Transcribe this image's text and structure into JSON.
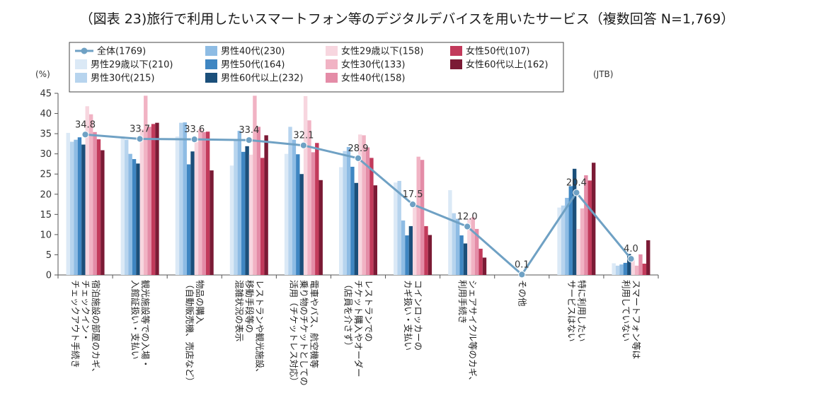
{
  "chart_data": {
    "type": "bar",
    "title": "（図表 23)旅行で利用したいスマートフォン等のデジタルデバイスを用いたサービス（複数回答 N=1,769）",
    "ylabel": "(%)",
    "source": "(JTB)",
    "ylim": [
      0,
      45
    ],
    "yticks": [
      0,
      5,
      10,
      15,
      20,
      25,
      30,
      35,
      40,
      45
    ],
    "categories": [
      "宿泊施設の部屋のカギ、チェックイン・チェックアウト手続き",
      "観光施設等での入場・入館証扱い・支払い",
      "物品の購入（自動販売機、売店など）",
      "レストランや観光施設、移動手段等の混雑状況の表示",
      "電車やバス、航空機等乗り物のチケットとしての活用（チケットレス対応）",
      "レストランでのチケット購入やオーダー（店員を介さず）",
      "コインロッカーのカギ扱い・支払い",
      "シェアサイクル等のカギ、利用手続き",
      "その他",
      "特に利用したいサービスはない",
      "スマートフォン等は利用していない"
    ],
    "category_lines": [
      [
        "宿泊施設の部屋のカギ、",
        "チェックイン・",
        "チェックアウト手続き"
      ],
      [
        "観光施設等での入場・",
        "入館証扱い・支払い"
      ],
      [
        "物品の購入",
        "（自動販売機、売店など）"
      ],
      [
        "レストランや観光施設、",
        "移動手段等の",
        "混雑状況の表示"
      ],
      [
        "電車やバス、航空機等",
        "乗り物のチケットとしての",
        "活用（チケットレス対応）"
      ],
      [
        "レストランでの",
        "チケット購入やオーダー",
        "（店員を介さず）"
      ],
      [
        "コインロッカーの",
        "カギ扱い・支払い"
      ],
      [
        "シェアサイクル等のカギ、",
        "利用手続き"
      ],
      [
        "その他"
      ],
      [
        "特に利用したい",
        "サービスはない"
      ],
      [
        "スマートフォン等は",
        "利用していない"
      ]
    ],
    "line_series": {
      "name": "全体(1769)",
      "color": "#6fa1c4",
      "values": [
        34.8,
        33.7,
        33.6,
        33.4,
        32.1,
        28.9,
        17.5,
        12.0,
        0.1,
        20.4,
        4.0
      ],
      "labels": [
        "34.8",
        "33.7",
        "33.6",
        "33.4",
        "32.1",
        "28.9",
        "17.5",
        "12.0",
        "0.1",
        "20.4",
        "4.0"
      ]
    },
    "series": [
      {
        "name": "男性29歳以下(210)",
        "color": "#dbe9f6",
        "values": [
          35.2,
          34.3,
          34.3,
          27.1,
          30.0,
          26.7,
          22.9,
          21.0,
          0.0,
          16.7,
          2.9
        ]
      },
      {
        "name": "男性30代(215)",
        "color": "#b7d4ee",
        "values": [
          33.0,
          33.5,
          37.7,
          33.5,
          36.7,
          30.7,
          23.3,
          15.3,
          0.0,
          17.2,
          2.3
        ]
      },
      {
        "name": "男性40代(230)",
        "color": "#8ebce4",
        "values": [
          33.5,
          30.0,
          37.8,
          35.7,
          33.5,
          31.7,
          13.5,
          13.9,
          0.0,
          19.1,
          2.6
        ]
      },
      {
        "name": "男性50代(164)",
        "color": "#3f86c2",
        "values": [
          34.1,
          28.7,
          27.4,
          30.5,
          29.9,
          26.8,
          9.8,
          9.8,
          0.0,
          22.0,
          3.0
        ]
      },
      {
        "name": "男性60代以上(232)",
        "color": "#1b4f7a",
        "values": [
          32.3,
          27.6,
          30.6,
          31.9,
          25.0,
          22.8,
          12.1,
          7.8,
          0.0,
          26.3,
          5.2
        ]
      },
      {
        "name": "女性29歳以下(158)",
        "color": "#f7d6df",
        "values": [
          41.8,
          36.1,
          32.9,
          29.8,
          44.3,
          34.8,
          17.1,
          13.9,
          0.0,
          11.4,
          3.8
        ]
      },
      {
        "name": "女性30代(133)",
        "color": "#f1b3c4",
        "values": [
          39.8,
          44.4,
          36.1,
          44.4,
          38.3,
          34.6,
          29.3,
          14.3,
          0.0,
          16.5,
          2.3
        ]
      },
      {
        "name": "女性40代(158)",
        "color": "#e48ca7",
        "values": [
          35.4,
          36.7,
          35.4,
          36.7,
          30.4,
          31.6,
          28.5,
          11.4,
          0.0,
          24.7,
          5.1
        ]
      },
      {
        "name": "女性50代(107)",
        "color": "#c23a5b",
        "values": [
          33.6,
          37.4,
          35.5,
          29.0,
          32.7,
          29.0,
          12.1,
          6.5,
          0.0,
          23.4,
          2.8
        ]
      },
      {
        "name": "女性60代以上(162)",
        "color": "#7b1a35",
        "values": [
          30.9,
          37.7,
          25.9,
          34.6,
          23.5,
          22.2,
          9.9,
          4.3,
          0.0,
          27.8,
          8.6
        ]
      }
    ]
  }
}
